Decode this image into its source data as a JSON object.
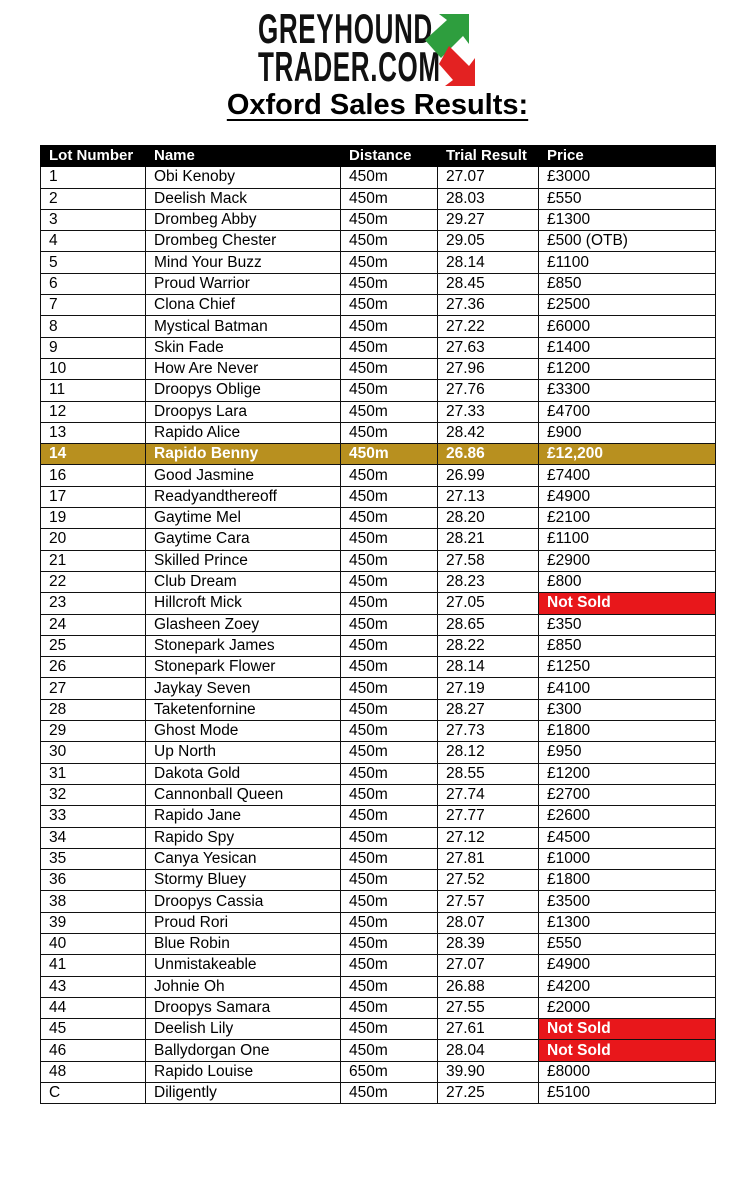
{
  "logo": {
    "line1": "GREYHOUND",
    "line2": "TRADER.COM",
    "colors": {
      "up_arrow": "#2e9e3e",
      "down_arrow": "#e32222"
    }
  },
  "title": "Oxford Sales Results:",
  "colors": {
    "highlight_row": "#b8901f",
    "not_sold": "#e8171b",
    "header_bg": "#000000"
  },
  "table": {
    "headers": [
      "Lot Number",
      "Name",
      "Distance",
      "Trial Result",
      "Price"
    ],
    "rows": [
      {
        "lot": "1",
        "name": "Obi Kenoby",
        "distance": "450m",
        "trial": "27.07",
        "price": "£3000"
      },
      {
        "lot": "2",
        "name": "Deelish Mack",
        "distance": "450m",
        "trial": "28.03",
        "price": "£550"
      },
      {
        "lot": "3",
        "name": "Drombeg Abby",
        "distance": "450m",
        "trial": "29.27",
        "price": "£1300"
      },
      {
        "lot": "4",
        "name": "Drombeg Chester",
        "distance": "450m",
        "trial": "29.05",
        "price": "£500 (OTB)"
      },
      {
        "lot": "5",
        "name": "Mind Your Buzz",
        "distance": "450m",
        "trial": "28.14",
        "price": "£1100"
      },
      {
        "lot": "6",
        "name": "Proud Warrior",
        "distance": "450m",
        "trial": "28.45",
        "price": "£850"
      },
      {
        "lot": "7",
        "name": "Clona Chief",
        "distance": "450m",
        "trial": "27.36",
        "price": "£2500"
      },
      {
        "lot": "8",
        "name": "Mystical Batman",
        "distance": "450m",
        "trial": "27.22",
        "price": "£6000"
      },
      {
        "lot": "9",
        "name": "Skin Fade",
        "distance": "450m",
        "trial": "27.63",
        "price": "£1400"
      },
      {
        "lot": "10",
        "name": "How Are Never",
        "distance": "450m",
        "trial": "27.96",
        "price": "£1200"
      },
      {
        "lot": "11",
        "name": "Droopys Oblige",
        "distance": "450m",
        "trial": "27.76",
        "price": "£3300"
      },
      {
        "lot": "12",
        "name": "Droopys Lara",
        "distance": "450m",
        "trial": "27.33",
        "price": "£4700"
      },
      {
        "lot": "13",
        "name": "Rapido Alice",
        "distance": "450m",
        "trial": "28.42",
        "price": "£900"
      },
      {
        "lot": "14",
        "name": "Rapido Benny",
        "distance": "450m",
        "trial": "26.86",
        "price": "£12,200",
        "highlight": true
      },
      {
        "lot": "16",
        "name": "Good Jasmine",
        "distance": "450m",
        "trial": "26.99",
        "price": "£7400"
      },
      {
        "lot": "17",
        "name": "Readyandthereoff",
        "distance": "450m",
        "trial": "27.13",
        "price": "£4900"
      },
      {
        "lot": "19",
        "name": "Gaytime Mel",
        "distance": "450m",
        "trial": "28.20",
        "price": "£2100"
      },
      {
        "lot": "20",
        "name": "Gaytime Cara",
        "distance": "450m",
        "trial": "28.21",
        "price": "£1100"
      },
      {
        "lot": "21",
        "name": "Skilled Prince",
        "distance": "450m",
        "trial": "27.58",
        "price": "£2900"
      },
      {
        "lot": "22",
        "name": "Club Dream",
        "distance": "450m",
        "trial": "28.23",
        "price": "£800"
      },
      {
        "lot": "23",
        "name": "Hillcroft Mick",
        "distance": "450m",
        "trial": "27.05",
        "price": "Not Sold",
        "not_sold": true
      },
      {
        "lot": "24",
        "name": "Glasheen Zoey",
        "distance": "450m",
        "trial": "28.65",
        "price": "£350"
      },
      {
        "lot": "25",
        "name": "Stonepark James",
        "distance": "450m",
        "trial": "28.22",
        "price": "£850"
      },
      {
        "lot": "26",
        "name": "Stonepark Flower",
        "distance": "450m",
        "trial": "28.14",
        "price": "£1250"
      },
      {
        "lot": "27",
        "name": "Jaykay Seven",
        "distance": "450m",
        "trial": "27.19",
        "price": "£4100"
      },
      {
        "lot": "28",
        "name": "Taketenfornine",
        "distance": "450m",
        "trial": "28.27",
        "price": "£300"
      },
      {
        "lot": "29",
        "name": "Ghost Mode",
        "distance": "450m",
        "trial": "27.73",
        "price": "£1800"
      },
      {
        "lot": "30",
        "name": "Up North",
        "distance": "450m",
        "trial": "28.12",
        "price": "£950"
      },
      {
        "lot": "31",
        "name": "Dakota Gold",
        "distance": "450m",
        "trial": "28.55",
        "price": "£1200"
      },
      {
        "lot": "32",
        "name": "Cannonball Queen",
        "distance": "450m",
        "trial": "27.74",
        "price": "£2700"
      },
      {
        "lot": "33",
        "name": "Rapido Jane",
        "distance": "450m",
        "trial": "27.77",
        "price": "£2600"
      },
      {
        "lot": "34",
        "name": "Rapido Spy",
        "distance": "450m",
        "trial": "27.12",
        "price": "£4500"
      },
      {
        "lot": "35",
        "name": "Canya Yesican",
        "distance": "450m",
        "trial": "27.81",
        "price": "£1000"
      },
      {
        "lot": "36",
        "name": "Stormy Bluey",
        "distance": "450m",
        "trial": "27.52",
        "price": "£1800"
      },
      {
        "lot": "38",
        "name": "Droopys Cassia",
        "distance": "450m",
        "trial": "27.57",
        "price": "£3500"
      },
      {
        "lot": "39",
        "name": "Proud Rori",
        "distance": "450m",
        "trial": "28.07",
        "price": "£1300"
      },
      {
        "lot": "40",
        "name": "Blue Robin",
        "distance": "450m",
        "trial": "28.39",
        "price": "£550"
      },
      {
        "lot": "41",
        "name": "Unmistakeable",
        "distance": "450m",
        "trial": "27.07",
        "price": "£4900"
      },
      {
        "lot": "43",
        "name": "Johnie Oh",
        "distance": "450m",
        "trial": "26.88",
        "price": "£4200"
      },
      {
        "lot": "44",
        "name": "Droopys Samara",
        "distance": "450m",
        "trial": "27.55",
        "price": "£2000"
      },
      {
        "lot": "45",
        "name": "Deelish Lily",
        "distance": "450m",
        "trial": "27.61",
        "price": "Not Sold",
        "not_sold": true
      },
      {
        "lot": "46",
        "name": "Ballydorgan One",
        "distance": "450m",
        "trial": "28.04",
        "price": "Not Sold",
        "not_sold": true
      },
      {
        "lot": "48",
        "name": "Rapido Louise",
        "distance": "650m",
        "trial": "39.90",
        "price": "£8000"
      },
      {
        "lot": "C",
        "name": "Diligently",
        "distance": "450m",
        "trial": "27.25",
        "price": "£5100"
      }
    ]
  }
}
